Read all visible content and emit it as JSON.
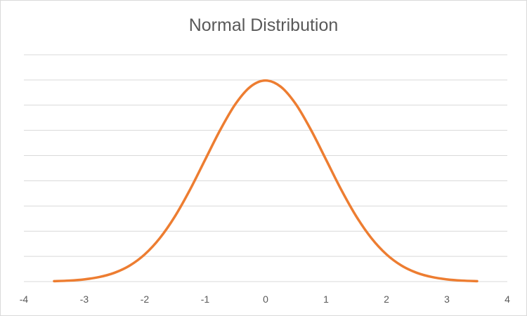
{
  "chart_data": {
    "type": "line",
    "title": "Normal Distribution",
    "xlabel": "",
    "ylabel": "",
    "xlim": [
      -4,
      4
    ],
    "x_ticks": [
      -4,
      -3,
      -2,
      -1,
      0,
      1,
      2,
      3,
      4
    ],
    "y_ticks_shown": false,
    "ylim": [
      0,
      0.45
    ],
    "y_gridline_step": 0.05,
    "grid": "horizontal",
    "legend": "none",
    "series": [
      {
        "color": "#ed7d31",
        "x": [
          -3.5,
          -3.25,
          -3.0,
          -2.75,
          -2.5,
          -2.25,
          -2.0,
          -1.75,
          -1.5,
          -1.25,
          -1.0,
          -0.75,
          -0.5,
          -0.25,
          0.0,
          0.25,
          0.5,
          0.75,
          1.0,
          1.25,
          1.5,
          1.75,
          2.0,
          2.25,
          2.5,
          2.75,
          3.0,
          3.25,
          3.5
        ],
        "y": [
          0.0009,
          0.002,
          0.0044,
          0.0091,
          0.0175,
          0.0317,
          0.054,
          0.0863,
          0.1295,
          0.1826,
          0.242,
          0.3011,
          0.3521,
          0.3867,
          0.3989,
          0.3867,
          0.3521,
          0.3011,
          0.242,
          0.1826,
          0.1295,
          0.0863,
          0.054,
          0.0317,
          0.0175,
          0.0091,
          0.0044,
          0.002,
          0.0009
        ]
      }
    ]
  }
}
